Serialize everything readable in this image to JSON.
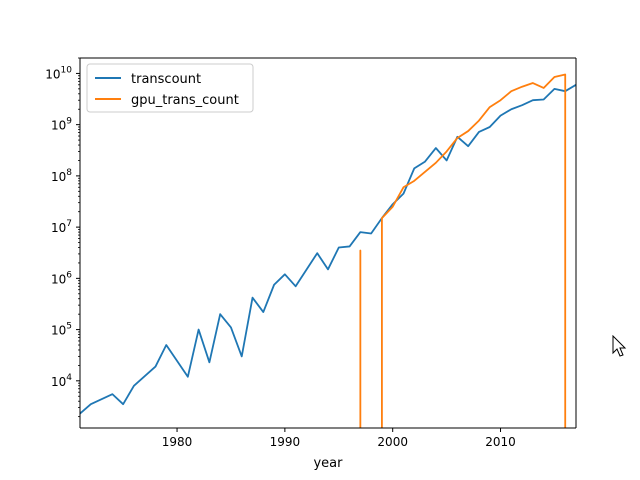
{
  "chart_data": {
    "type": "line",
    "xlabel": "year",
    "ylabel": "",
    "xlim": [
      1971,
      2017
    ],
    "ylim": [
      1200,
      20000000000
    ],
    "yscale": "log",
    "grid": false,
    "legend": "top-left",
    "x_ticks": [
      1980,
      1990,
      2000,
      2010
    ],
    "x_tick_labels": [
      "1980",
      "1990",
      "2000",
      "2010"
    ],
    "y_ticks": [
      10000,
      100000,
      1000000,
      10000000,
      100000000,
      1000000000,
      10000000000
    ],
    "y_tick_bases": [
      "10",
      "10",
      "10",
      "10",
      "10",
      "10",
      "10"
    ],
    "y_tick_exponents": [
      "4",
      "5",
      "6",
      "7",
      "8",
      "9",
      "10"
    ],
    "series": [
      {
        "name": "transcount",
        "color": "#1f77b4",
        "x": [
          1971,
          1972,
          1974,
          1975,
          1976,
          1978,
          1979,
          1981,
          1982,
          1983,
          1984,
          1985,
          1986,
          1987,
          1988,
          1989,
          1990,
          1991,
          1993,
          1994,
          1995,
          1996,
          1997,
          1998,
          1999,
          2000,
          2001,
          2002,
          2003,
          2004,
          2005,
          2006,
          2007,
          2008,
          2009,
          2010,
          2011,
          2012,
          2013,
          2014,
          2015,
          2016,
          2017
        ],
        "y": [
          2300,
          3500,
          5500,
          3500,
          8000,
          19000,
          50000,
          12000,
          100000,
          23000,
          200000,
          110000,
          30000,
          420000,
          220000,
          750000,
          1200000,
          700000,
          3100000,
          1500000,
          4000000,
          4200000,
          8000000,
          7500000,
          15000000,
          28000000,
          45000000,
          140000000,
          190000000,
          350000000,
          200000000,
          580000000,
          380000000,
          720000000,
          900000000,
          1500000000,
          2000000000,
          2400000000,
          3000000000,
          3100000000,
          5000000000,
          4500000000,
          6000000000
        ]
      },
      {
        "name": "gpu_trans_count",
        "color": "#ff7f0e",
        "x": [
          1997,
          1997,
          1997,
          1999,
          1999,
          2000,
          2001,
          2002,
          2003,
          2004,
          2005,
          2006,
          2007,
          2008,
          2009,
          2010,
          2011,
          2012,
          2013,
          2014,
          2015,
          2016,
          2016,
          2016
        ],
        "y": [
          1000,
          3500000,
          1000,
          1000,
          15000000,
          25000000,
          60000000,
          80000000,
          120000000,
          180000000,
          300000000,
          550000000,
          750000000,
          1200000000,
          2200000000,
          3000000000,
          4500000000,
          5500000000,
          6500000000,
          5200000000,
          8500000000,
          9500000000,
          9500000000,
          1000
        ]
      }
    ]
  }
}
